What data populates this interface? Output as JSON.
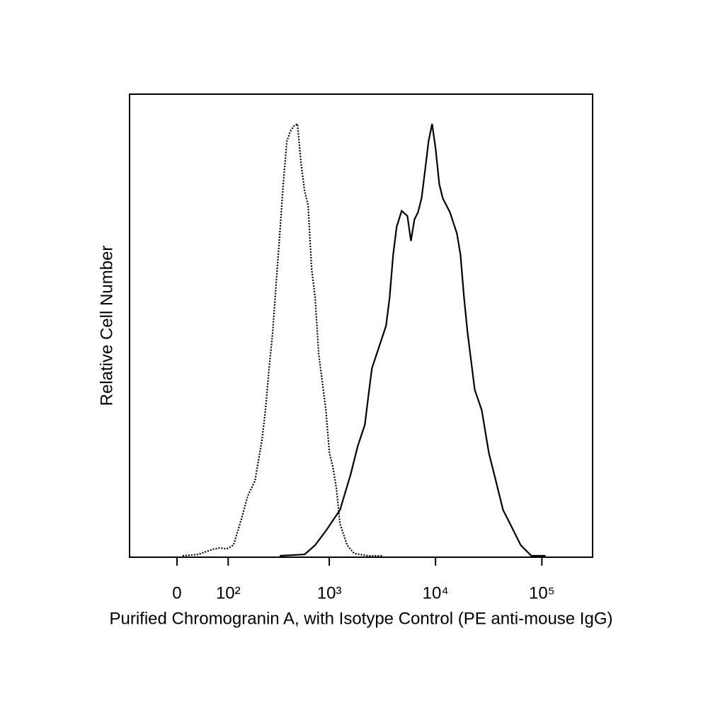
{
  "chart_data": {
    "type": "histogram_overlay",
    "x_label": "Purified Chromogranin A, with Isotype Control (PE anti-mouse IgG)",
    "y_label": "Relative Cell Number",
    "xscale": "biexponential",
    "xlim": [
      -90,
      300000
    ],
    "ylim": [
      0,
      100
    ],
    "xticks": [
      0,
      {
        "value": 100,
        "label": "10²"
      },
      {
        "value": 1000,
        "label": "10³"
      },
      {
        "value": 10000,
        "label": "10⁴"
      },
      {
        "value": 100000,
        "label": "10⁵"
      }
    ],
    "series": [
      {
        "color": "#000000",
        "style": "dotted",
        "x": [
          9,
          35,
          63,
          79,
          96,
          115,
          139,
          164,
          193,
          228,
          246,
          267,
          289,
          313,
          339,
          366,
          396,
          428,
          462,
          500,
          540,
          584,
          631,
          682,
          736,
          794,
          861,
          929,
          1003,
          1083,
          1169,
          1262,
          1473,
          1717,
          2333,
          3175
        ],
        "values": [
          0.3,
          0.6,
          1.7,
          2.0,
          1.8,
          2.6,
          8.0,
          13.3,
          16.4,
          25.5,
          31.7,
          40.8,
          48.5,
          59.2,
          69.9,
          80.6,
          89.8,
          92.0,
          93.1,
          93.6,
          85.2,
          79.1,
          76.0,
          62.2,
          56.1,
          43.9,
          37.8,
          31.7,
          22.5,
          19.4,
          14.8,
          7.2,
          2.6,
          0.8,
          0.3,
          0.3
        ]
      },
      {
        "color": "#000000",
        "style": "solid",
        "x": [
          339,
          584,
          736,
          929,
          1262,
          1591,
          1854,
          2161,
          2333,
          2520,
          2938,
          3426,
          3700,
          3996,
          4314,
          4803,
          5432,
          5865,
          6331,
          6838,
          7382,
          7974,
          8603,
          9287,
          10027,
          10841,
          11692,
          13653,
          15910,
          17168,
          18537,
          20017,
          23347,
          27232,
          31746,
          37000,
          43142,
          50320,
          63307,
          79698,
          108373
        ],
        "values": [
          0.3,
          0.6,
          2.6,
          5.7,
          10.2,
          17.9,
          24.0,
          28.6,
          34.7,
          40.8,
          45.4,
          50.0,
          56.1,
          65.3,
          71.4,
          74.8,
          73.7,
          68.3,
          72.9,
          74.5,
          77.5,
          83.6,
          89.8,
          93.6,
          88.2,
          80.6,
          77.5,
          74.5,
          69.9,
          65.3,
          56.1,
          48.5,
          36.2,
          31.7,
          22.5,
          16.4,
          10.2,
          7.2,
          2.6,
          0.3,
          0.3
        ]
      }
    ]
  }
}
